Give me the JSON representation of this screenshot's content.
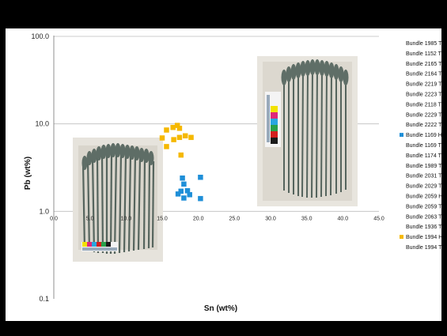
{
  "chart_data": {
    "type": "scatter",
    "title": "",
    "xlabel": "Sn (wt%)",
    "ylabel": "Pb (wt%)",
    "xlim": [
      0,
      45
    ],
    "ylim": [
      0.1,
      100
    ],
    "y_scale": "log",
    "x_ticks": [
      "0.0",
      "5.0",
      "10.0",
      "15.0",
      "20.0",
      "25.0",
      "30.0",
      "35.0",
      "40.0",
      "45.0"
    ],
    "x_tick_values": [
      0,
      5,
      10,
      15,
      20,
      25,
      30,
      35,
      40,
      45
    ],
    "y_ticks": [
      "100.0",
      "10.0",
      "1.0",
      "0.1"
    ],
    "y_tick_values": [
      100,
      10,
      1,
      0.1
    ],
    "grid": "horizontal",
    "legend_position": "right",
    "legend": [
      {
        "name": "Bundle 1985 T",
        "marker": false
      },
      {
        "name": "Bundle 1152 T",
        "marker": false
      },
      {
        "name": "Bundle 2165 T",
        "marker": false
      },
      {
        "name": "Bundle 2164 T",
        "marker": false
      },
      {
        "name": "Bundle 2219 T",
        "marker": false
      },
      {
        "name": "Bundle 2223 T",
        "marker": false
      },
      {
        "name": "Bundle 2118 T",
        "marker": false
      },
      {
        "name": "Bundle 2229 T",
        "marker": false
      },
      {
        "name": "Bundle 2222 T",
        "marker": false
      },
      {
        "name": "Bundle 1169 H",
        "marker": true,
        "color": "#1f8fd8"
      },
      {
        "name": "Bundle 1169 T",
        "marker": false
      },
      {
        "name": "Bundle 1174 T",
        "marker": false
      },
      {
        "name": "Bundle 1989 T",
        "marker": false
      },
      {
        "name": "Bundle 2031 T",
        "marker": false
      },
      {
        "name": "Bundle 2029 T",
        "marker": false
      },
      {
        "name": "Bundle 2059 H",
        "marker": false
      },
      {
        "name": "Bundle 2059 T",
        "marker": false
      },
      {
        "name": "Bundle 2063 T",
        "marker": false
      },
      {
        "name": "Bundle 1936 T",
        "marker": false
      },
      {
        "name": "Bundle 1994 H",
        "marker": true,
        "color": "#f5b800"
      },
      {
        "name": "Bundle 1994 T",
        "marker": false
      }
    ],
    "series": [
      {
        "name": "Bundle 1169 H",
        "color": "#1f8fd8",
        "points": [
          {
            "x": 17.8,
            "y": 2.4
          },
          {
            "x": 20.3,
            "y": 2.45
          },
          {
            "x": 18.0,
            "y": 2.05
          },
          {
            "x": 18.5,
            "y": 1.72
          },
          {
            "x": 17.6,
            "y": 1.7
          },
          {
            "x": 17.2,
            "y": 1.58
          },
          {
            "x": 18.8,
            "y": 1.55
          },
          {
            "x": 18.0,
            "y": 1.42
          },
          {
            "x": 20.3,
            "y": 1.4
          }
        ]
      },
      {
        "name": "Bundle 1994 H",
        "color": "#f5b800",
        "points": [
          {
            "x": 15.6,
            "y": 8.5
          },
          {
            "x": 16.5,
            "y": 9.1
          },
          {
            "x": 17.1,
            "y": 9.6
          },
          {
            "x": 17.4,
            "y": 8.9
          },
          {
            "x": 15.0,
            "y": 6.9
          },
          {
            "x": 16.6,
            "y": 6.6
          },
          {
            "x": 17.4,
            "y": 7.0
          },
          {
            "x": 18.2,
            "y": 7.3
          },
          {
            "x": 19.0,
            "y": 7.0
          },
          {
            "x": 15.6,
            "y": 5.5
          },
          {
            "x": 17.6,
            "y": 4.4
          }
        ]
      }
    ]
  }
}
